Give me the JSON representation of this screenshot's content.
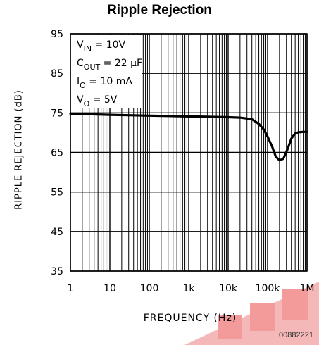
{
  "chart_data": {
    "type": "line",
    "title": "Ripple Rejection",
    "xlabel": "FREQUENCY (Hz)",
    "ylabel": "RIPPLE REJECTION (dB)",
    "x_scale": "log",
    "xlim": [
      1,
      1000000
    ],
    "ylim": [
      35,
      95
    ],
    "x_ticks": [
      {
        "value": 1,
        "label": "1"
      },
      {
        "value": 10,
        "label": "10"
      },
      {
        "value": 100,
        "label": "100"
      },
      {
        "value": 1000,
        "label": "1k"
      },
      {
        "value": 10000,
        "label": "10k"
      },
      {
        "value": 100000,
        "label": "100k"
      },
      {
        "value": 1000000,
        "label": "1M"
      }
    ],
    "y_ticks": [
      35,
      45,
      55,
      65,
      75,
      85,
      95
    ],
    "grid": true,
    "conditions": [
      {
        "base": "V",
        "sub": "IN",
        "rest": " = 10V"
      },
      {
        "base": "C",
        "sub": "OUT",
        "rest": " = 22 μF"
      },
      {
        "base": "I",
        "sub": "O",
        "rest": " = 10 mA"
      },
      {
        "base": "V",
        "sub": "O",
        "rest": " = 5V"
      }
    ],
    "series": [
      {
        "x": [
          1,
          2,
          5,
          10,
          30,
          100,
          300,
          1000,
          3000,
          10000,
          20000,
          40000,
          60000,
          80000,
          100000,
          130000,
          160000,
          200000,
          250000,
          320000,
          400000,
          500000,
          600000,
          800000,
          1000000
        ],
        "y": [
          74.8,
          74.7,
          74.6,
          74.5,
          74.4,
          74.3,
          74.2,
          74.1,
          74.0,
          73.9,
          73.8,
          73.4,
          72.2,
          70.8,
          69.0,
          66.5,
          64.0,
          63.0,
          63.4,
          65.8,
          68.5,
          69.8,
          70.1,
          70.2,
          70.2
        ]
      }
    ]
  },
  "figure_code": "00882221"
}
